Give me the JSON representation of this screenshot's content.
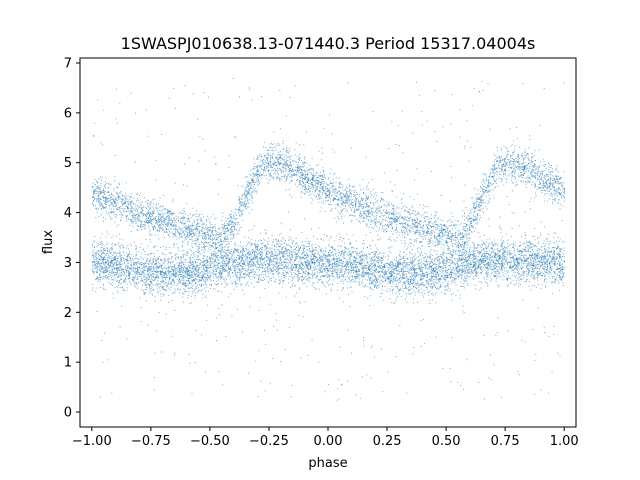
{
  "chart_data": {
    "type": "scatter",
    "title": "1SWASPJ010638.13-071440.3 Period 15317.04004s",
    "xlabel": "phase",
    "ylabel": "flux",
    "xlim": [
      -1.05,
      1.05
    ],
    "ylim": [
      -0.3,
      7.1
    ],
    "xticks": [
      -1.0,
      -0.75,
      -0.5,
      -0.25,
      0.0,
      0.25,
      0.5,
      0.75,
      1.0
    ],
    "xtick_labels": [
      "−1.00",
      "−0.75",
      "−0.50",
      "−0.25",
      "0.00",
      "0.25",
      "0.50",
      "0.75",
      "1.00"
    ],
    "yticks": [
      0,
      1,
      2,
      3,
      4,
      5,
      6,
      7
    ],
    "ytick_labels": [
      "0",
      "1",
      "2",
      "3",
      "4",
      "5",
      "6",
      "7"
    ],
    "grid": false,
    "marker_color": "#1f77b4",
    "series": [
      {
        "component": "baseline band",
        "x": [
          -1.0,
          -0.9,
          -0.8,
          -0.7,
          -0.6,
          -0.5,
          -0.4,
          -0.3,
          -0.2,
          -0.1,
          0.0,
          0.1,
          0.2,
          0.3,
          0.4,
          0.5,
          0.6,
          0.7,
          0.8,
          0.9,
          1.0
        ],
        "y": [
          3.0,
          2.95,
          2.85,
          2.8,
          2.8,
          2.9,
          3.0,
          3.05,
          3.05,
          3.0,
          3.0,
          2.95,
          2.85,
          2.8,
          2.8,
          2.9,
          3.0,
          3.05,
          3.05,
          3.0,
          3.0
        ]
      },
      {
        "component": "bright sawtooth",
        "x": [
          -1.0,
          -0.9,
          -0.8,
          -0.7,
          -0.6,
          -0.5,
          -0.45,
          -0.4,
          -0.35,
          -0.3,
          -0.25,
          -0.2,
          -0.1,
          0.0,
          0.1,
          0.2,
          0.3,
          0.4,
          0.5,
          0.55,
          0.6,
          0.65,
          0.7,
          0.75,
          0.8,
          0.9,
          1.0
        ],
        "y": [
          4.4,
          4.2,
          4.0,
          3.85,
          3.7,
          3.55,
          3.5,
          3.8,
          4.3,
          4.8,
          5.0,
          5.0,
          4.7,
          4.45,
          4.2,
          4.0,
          3.85,
          3.7,
          3.55,
          3.5,
          3.8,
          4.3,
          4.8,
          5.0,
          5.0,
          4.7,
          4.45
        ]
      }
    ]
  }
}
